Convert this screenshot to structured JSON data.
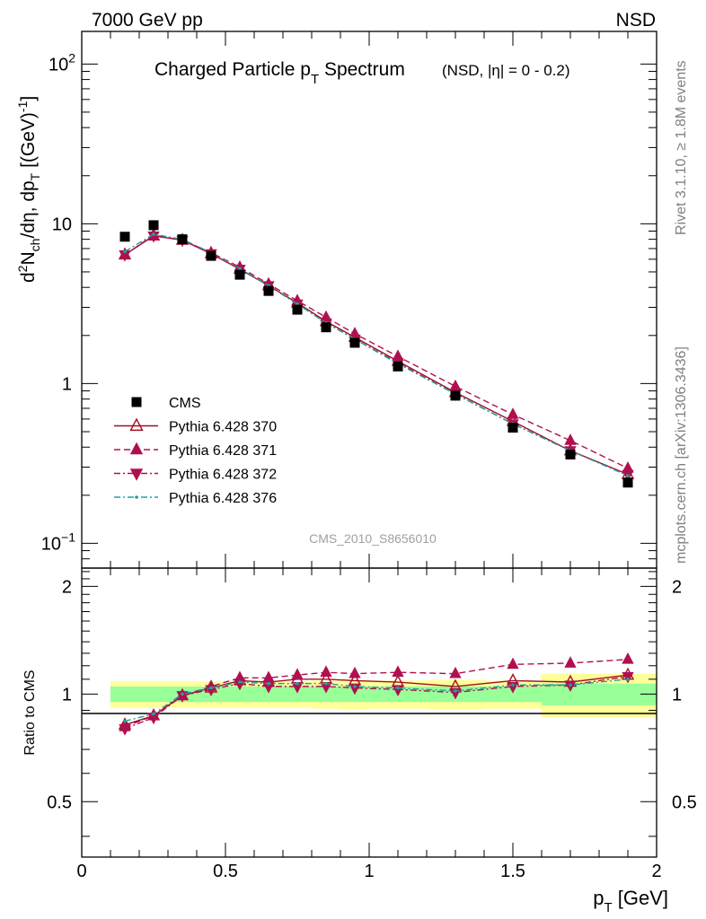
{
  "header": {
    "left": "7000 GeV pp",
    "right": "NSD"
  },
  "side_labels": {
    "rivet": "Rivet 3.1.10, ≥ 1.8M events",
    "mcplots": "mcplots.cern.ch [arXiv:1306.3436]"
  },
  "chart_data": [
    {
      "type": "scatter",
      "title_main": "Charged Particle p",
      "title_sub": "T",
      "title_main2": " Spectrum",
      "title_cond": "(NSD, |η| =   0 - 0.2)",
      "watermark": "CMS_2010_S8656010",
      "ylabel": "d²Nₓₕ/dη, dpₜ [(GeV)⁻¹]",
      "ylabel_parts": [
        "d",
        "2",
        "N",
        "ch",
        "/dη, dp",
        "T",
        " [(GeV)",
        "-1",
        "]"
      ],
      "yscale": "log",
      "xlim": [
        0,
        2.0
      ],
      "ylim": [
        0.07,
        160
      ],
      "ytick_labels": [
        {
          "v": 100,
          "base": "10",
          "exp": "2"
        },
        {
          "v": 10,
          "base": "10",
          "exp": ""
        },
        {
          "v": 1,
          "base": "1",
          "exp": ""
        },
        {
          "v": 0.1,
          "base": "10",
          "exp": "−1"
        }
      ],
      "x": [
        0.15,
        0.25,
        0.35,
        0.45,
        0.55,
        0.65,
        0.75,
        0.85,
        0.95,
        1.1,
        1.3,
        1.5,
        1.7,
        1.9
      ],
      "series": [
        {
          "name": "CMS",
          "color": "#000000",
          "marker": "square",
          "line": "none",
          "values": [
            8.3,
            9.8,
            8.0,
            6.3,
            4.8,
            3.8,
            2.9,
            2.25,
            1.8,
            1.28,
            0.84,
            0.53,
            0.36,
            0.24
          ]
        },
        {
          "name": "Pythia 6.428 370",
          "color": "#a01020",
          "marker": "triangle-up-open",
          "line": "solid",
          "values": [
            6.4,
            8.4,
            7.9,
            6.5,
            5.2,
            4.1,
            3.2,
            2.45,
            1.95,
            1.38,
            0.88,
            0.58,
            0.38,
            0.27
          ]
        },
        {
          "name": "Pythia 6.428 371",
          "color": "#b01050",
          "marker": "triangle-up",
          "line": "dashed",
          "values": [
            6.4,
            8.5,
            7.9,
            6.6,
            5.35,
            4.2,
            3.3,
            2.6,
            2.05,
            1.48,
            0.96,
            0.64,
            0.44,
            0.295
          ]
        },
        {
          "name": "Pythia 6.428 372",
          "color": "#b01050",
          "marker": "triangle-down",
          "line": "dashdot",
          "values": [
            6.4,
            8.4,
            7.9,
            6.5,
            5.2,
            4.1,
            3.15,
            2.4,
            1.9,
            1.35,
            0.86,
            0.56,
            0.38,
            0.27
          ]
        },
        {
          "name": "Pythia 6.428 376",
          "color": "#20a0a0",
          "marker": "dot",
          "line": "dashdot",
          "values": [
            6.7,
            8.6,
            8.0,
            6.6,
            5.25,
            4.1,
            3.15,
            2.4,
            1.9,
            1.33,
            0.86,
            0.56,
            0.38,
            0.265
          ]
        }
      ]
    },
    {
      "type": "line",
      "ylabel": "Ratio to CMS",
      "xlabel_main": "p",
      "xlabel_sub": "T",
      "xlabel_unit": " [GeV]",
      "xlim": [
        0,
        2.0
      ],
      "ylim": [
        0.35,
        2.25
      ],
      "xtick_labels": [
        "0",
        "0.5",
        "1",
        "1.5",
        "2"
      ],
      "ytick_labels": [
        "0.5",
        "1",
        "2"
      ],
      "band_bins": [
        {
          "x0": 0.1,
          "x1": 0.2,
          "stat": 0.05,
          "syst": 0.085
        },
        {
          "x0": 0.2,
          "x1": 0.3,
          "stat": 0.05,
          "syst": 0.085
        },
        {
          "x0": 0.3,
          "x1": 0.4,
          "stat": 0.05,
          "syst": 0.085
        },
        {
          "x0": 0.4,
          "x1": 0.5,
          "stat": 0.05,
          "syst": 0.085
        },
        {
          "x0": 0.5,
          "x1": 0.6,
          "stat": 0.05,
          "syst": 0.085
        },
        {
          "x0": 0.6,
          "x1": 0.7,
          "stat": 0.05,
          "syst": 0.085
        },
        {
          "x0": 0.7,
          "x1": 0.8,
          "stat": 0.05,
          "syst": 0.085
        },
        {
          "x0": 0.8,
          "x1": 0.9,
          "stat": 0.05,
          "syst": 0.09
        },
        {
          "x0": 0.9,
          "x1": 1.0,
          "stat": 0.05,
          "syst": 0.095
        },
        {
          "x0": 1.0,
          "x1": 1.2,
          "stat": 0.05,
          "syst": 0.09
        },
        {
          "x0": 1.2,
          "x1": 1.4,
          "stat": 0.05,
          "syst": 0.095
        },
        {
          "x0": 1.4,
          "x1": 1.6,
          "stat": 0.05,
          "syst": 0.09
        },
        {
          "x0": 1.6,
          "x1": 1.8,
          "stat": 0.07,
          "syst": 0.14
        },
        {
          "x0": 1.8,
          "x1": 2.0,
          "stat": 0.07,
          "syst": 0.14
        }
      ],
      "band_colors": {
        "syst": "#ffff99",
        "stat": "#99ff99"
      },
      "series": [
        {
          "name": "Pythia 6.428 370",
          "color": "#a01020",
          "marker": "triangle-up-open",
          "line": "solid",
          "values": [
            0.82,
            0.87,
            0.99,
            1.04,
            1.09,
            1.08,
            1.1,
            1.1,
            1.09,
            1.08,
            1.05,
            1.09,
            1.08,
            1.13
          ]
        },
        {
          "name": "Pythia 6.428 371",
          "color": "#b01050",
          "marker": "triangle-up",
          "line": "dashed",
          "values": [
            0.81,
            0.87,
            0.99,
            1.05,
            1.11,
            1.11,
            1.13,
            1.15,
            1.14,
            1.15,
            1.14,
            1.21,
            1.22,
            1.25
          ]
        },
        {
          "name": "Pythia 6.428 372",
          "color": "#b01050",
          "marker": "triangle-down",
          "line": "dashdot",
          "values": [
            0.8,
            0.86,
            0.99,
            1.03,
            1.07,
            1.05,
            1.05,
            1.05,
            1.04,
            1.03,
            1.01,
            1.05,
            1.06,
            1.12
          ]
        },
        {
          "name": "Pythia 6.428 376",
          "color": "#20a0a0",
          "marker": "dot",
          "line": "dashdot",
          "values": [
            0.84,
            0.88,
            1.0,
            1.04,
            1.08,
            1.07,
            1.07,
            1.07,
            1.05,
            1.04,
            1.02,
            1.06,
            1.06,
            1.1
          ]
        }
      ]
    }
  ]
}
